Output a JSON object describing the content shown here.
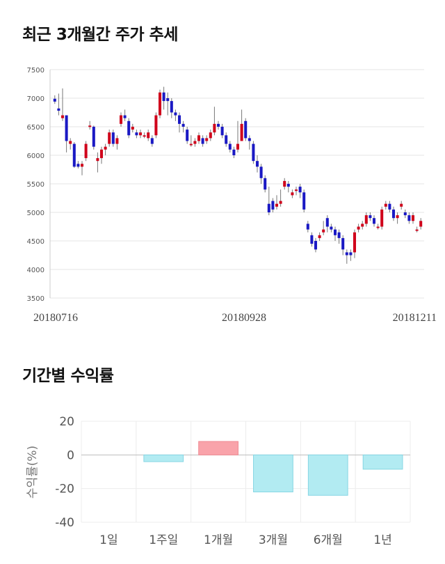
{
  "titles": {
    "trend": "최근 3개월간 주가 추세",
    "returns": "기간별 수익률"
  },
  "chart_data": [
    {
      "type": "candlestick",
      "title": "최근 3개월간 주가 추세",
      "ylim": [
        3500,
        7500
      ],
      "yticks": [
        3500,
        4000,
        4500,
        5000,
        5500,
        6000,
        6500,
        7000,
        7500
      ],
      "x_labels": [
        "20180716",
        "20180928",
        "20181211"
      ],
      "grid": true,
      "colors": {
        "up": "#d0021b",
        "down": "#1a19c4",
        "wick": "#777777",
        "grid": "#e6e6e6"
      },
      "candles": [
        [
          6990,
          6940,
          7050,
          6900
        ],
        [
          6820,
          6780,
          7080,
          6700
        ],
        [
          6650,
          6700,
          7170,
          6600
        ],
        [
          6700,
          6250,
          6700,
          6050
        ],
        [
          6200,
          6250,
          6300,
          6100
        ],
        [
          6200,
          5800,
          6230,
          5780
        ],
        [
          5850,
          5800,
          5900,
          5770
        ],
        [
          5800,
          5850,
          5900,
          5650
        ],
        [
          5950,
          6200,
          6250,
          5900
        ],
        [
          6500,
          6520,
          6600,
          6450
        ],
        [
          6500,
          6150,
          6520,
          6100
        ],
        [
          5900,
          5950,
          6050,
          5700
        ],
        [
          5950,
          6100,
          6150,
          5850
        ],
        [
          6100,
          6150,
          6200,
          6000
        ],
        [
          6200,
          6400,
          6450,
          6150
        ],
        [
          6400,
          6200,
          6450,
          6150
        ],
        [
          6200,
          6300,
          6350,
          6100
        ],
        [
          6550,
          6700,
          6750,
          6500
        ],
        [
          6700,
          6650,
          6800,
          6600
        ],
        [
          6600,
          6350,
          6650,
          6300
        ],
        [
          6450,
          6500,
          6550,
          6400
        ],
        [
          6400,
          6350,
          6450,
          6300
        ],
        [
          6350,
          6400,
          6450,
          6300
        ],
        [
          6350,
          6350,
          6400,
          6300
        ],
        [
          6300,
          6400,
          6450,
          6250
        ],
        [
          6300,
          6200,
          6350,
          6150
        ],
        [
          6350,
          6700,
          6750,
          6300
        ],
        [
          6700,
          7100,
          7150,
          6650
        ],
        [
          7100,
          6950,
          7200,
          6800
        ],
        [
          7000,
          6950,
          7100,
          6700
        ],
        [
          6950,
          6750,
          7000,
          6650
        ],
        [
          6750,
          6700,
          6800,
          6600
        ],
        [
          6700,
          6550,
          6750,
          6400
        ],
        [
          6550,
          6500,
          6600,
          6400
        ],
        [
          6450,
          6250,
          6500,
          6200
        ],
        [
          6200,
          6200,
          6350,
          6150
        ],
        [
          6200,
          6250,
          6300,
          6150
        ],
        [
          6250,
          6350,
          6400,
          6200
        ],
        [
          6300,
          6200,
          6350,
          6150
        ],
        [
          6250,
          6300,
          6350,
          6200
        ],
        [
          6300,
          6400,
          6450,
          6250
        ],
        [
          6400,
          6550,
          6850,
          6350
        ],
        [
          6550,
          6500,
          6600,
          6450
        ],
        [
          6500,
          6350,
          6550,
          6300
        ],
        [
          6350,
          6200,
          6400,
          6150
        ],
        [
          6200,
          6100,
          6250,
          6050
        ],
        [
          6100,
          6000,
          6150,
          5950
        ],
        [
          6100,
          6200,
          6600,
          6050
        ],
        [
          6250,
          6550,
          6800,
          6250
        ],
        [
          6600,
          6300,
          6650,
          6250
        ],
        [
          6300,
          6250,
          6350,
          6100
        ],
        [
          6200,
          5900,
          6250,
          5850
        ],
        [
          5900,
          5800,
          6000,
          5700
        ],
        [
          5800,
          5600,
          5850,
          5500
        ],
        [
          5600,
          5400,
          5650,
          5350
        ],
        [
          5150,
          5000,
          5450,
          4950
        ],
        [
          5200,
          5050,
          5250,
          5000
        ],
        [
          5100,
          5150,
          5300,
          5050
        ],
        [
          5150,
          5200,
          5400,
          5100
        ],
        [
          5450,
          5550,
          5600,
          5400
        ],
        [
          5500,
          5450,
          5550,
          5350
        ],
        [
          5300,
          5350,
          5400,
          5250
        ],
        [
          5400,
          5400,
          5450,
          5300
        ],
        [
          5450,
          5350,
          5500,
          5250
        ],
        [
          5350,
          5050,
          5400,
          5000
        ],
        [
          4800,
          4700,
          4850,
          4650
        ],
        [
          4600,
          4450,
          4650,
          4400
        ],
        [
          4500,
          4350,
          4550,
          4300
        ],
        [
          4550,
          4600,
          4650,
          4500
        ],
        [
          4650,
          4700,
          4850,
          4600
        ],
        [
          4900,
          4750,
          4950,
          4650
        ],
        [
          4750,
          4700,
          4800,
          4650
        ],
        [
          4700,
          4600,
          4750,
          4500
        ],
        [
          4650,
          4550,
          4700,
          4450
        ],
        [
          4550,
          4350,
          4600,
          4250
        ],
        [
          4300,
          4250,
          4350,
          4100
        ],
        [
          4300,
          4250,
          4350,
          4150
        ],
        [
          4300,
          4650,
          4700,
          4200
        ],
        [
          4700,
          4750,
          4800,
          4650
        ],
        [
          4750,
          4800,
          4850,
          4700
        ],
        [
          4800,
          4950,
          5000,
          4750
        ],
        [
          4950,
          4900,
          5000,
          4850
        ],
        [
          4900,
          4800,
          4950,
          4750
        ],
        [
          4750,
          4750,
          4800,
          4700
        ],
        [
          4750,
          5050,
          5100,
          4700
        ],
        [
          5100,
          5150,
          5200,
          5050
        ],
        [
          5150,
          5050,
          5200,
          5000
        ],
        [
          5050,
          4900,
          5100,
          4850
        ],
        [
          4900,
          4950,
          5000,
          4800
        ],
        [
          5100,
          5150,
          5200,
          5050
        ],
        [
          5000,
          4950,
          5050,
          4900
        ],
        [
          4950,
          4850,
          5000,
          4800
        ],
        [
          4850,
          4950,
          5000,
          4800
        ],
        [
          4700,
          4700,
          4750,
          4650
        ],
        [
          4750,
          4850,
          4900,
          4700
        ]
      ]
    },
    {
      "type": "bar",
      "categories": [
        "1일",
        "1주일",
        "1개월",
        "3개월",
        "6개월",
        "1년"
      ],
      "values": [
        0,
        -4,
        8,
        -22,
        -24,
        -8.5
      ],
      "ylabel": "수익률(%)",
      "ylim": [
        -40,
        20
      ],
      "yticks": [
        20,
        0,
        -20,
        -40
      ],
      "colors": {
        "positive": "#f9a3aa",
        "positive_edge": "#f08a93",
        "negative": "#b2ebf2",
        "negative_edge": "#86d6e3"
      },
      "grid": true
    }
  ]
}
